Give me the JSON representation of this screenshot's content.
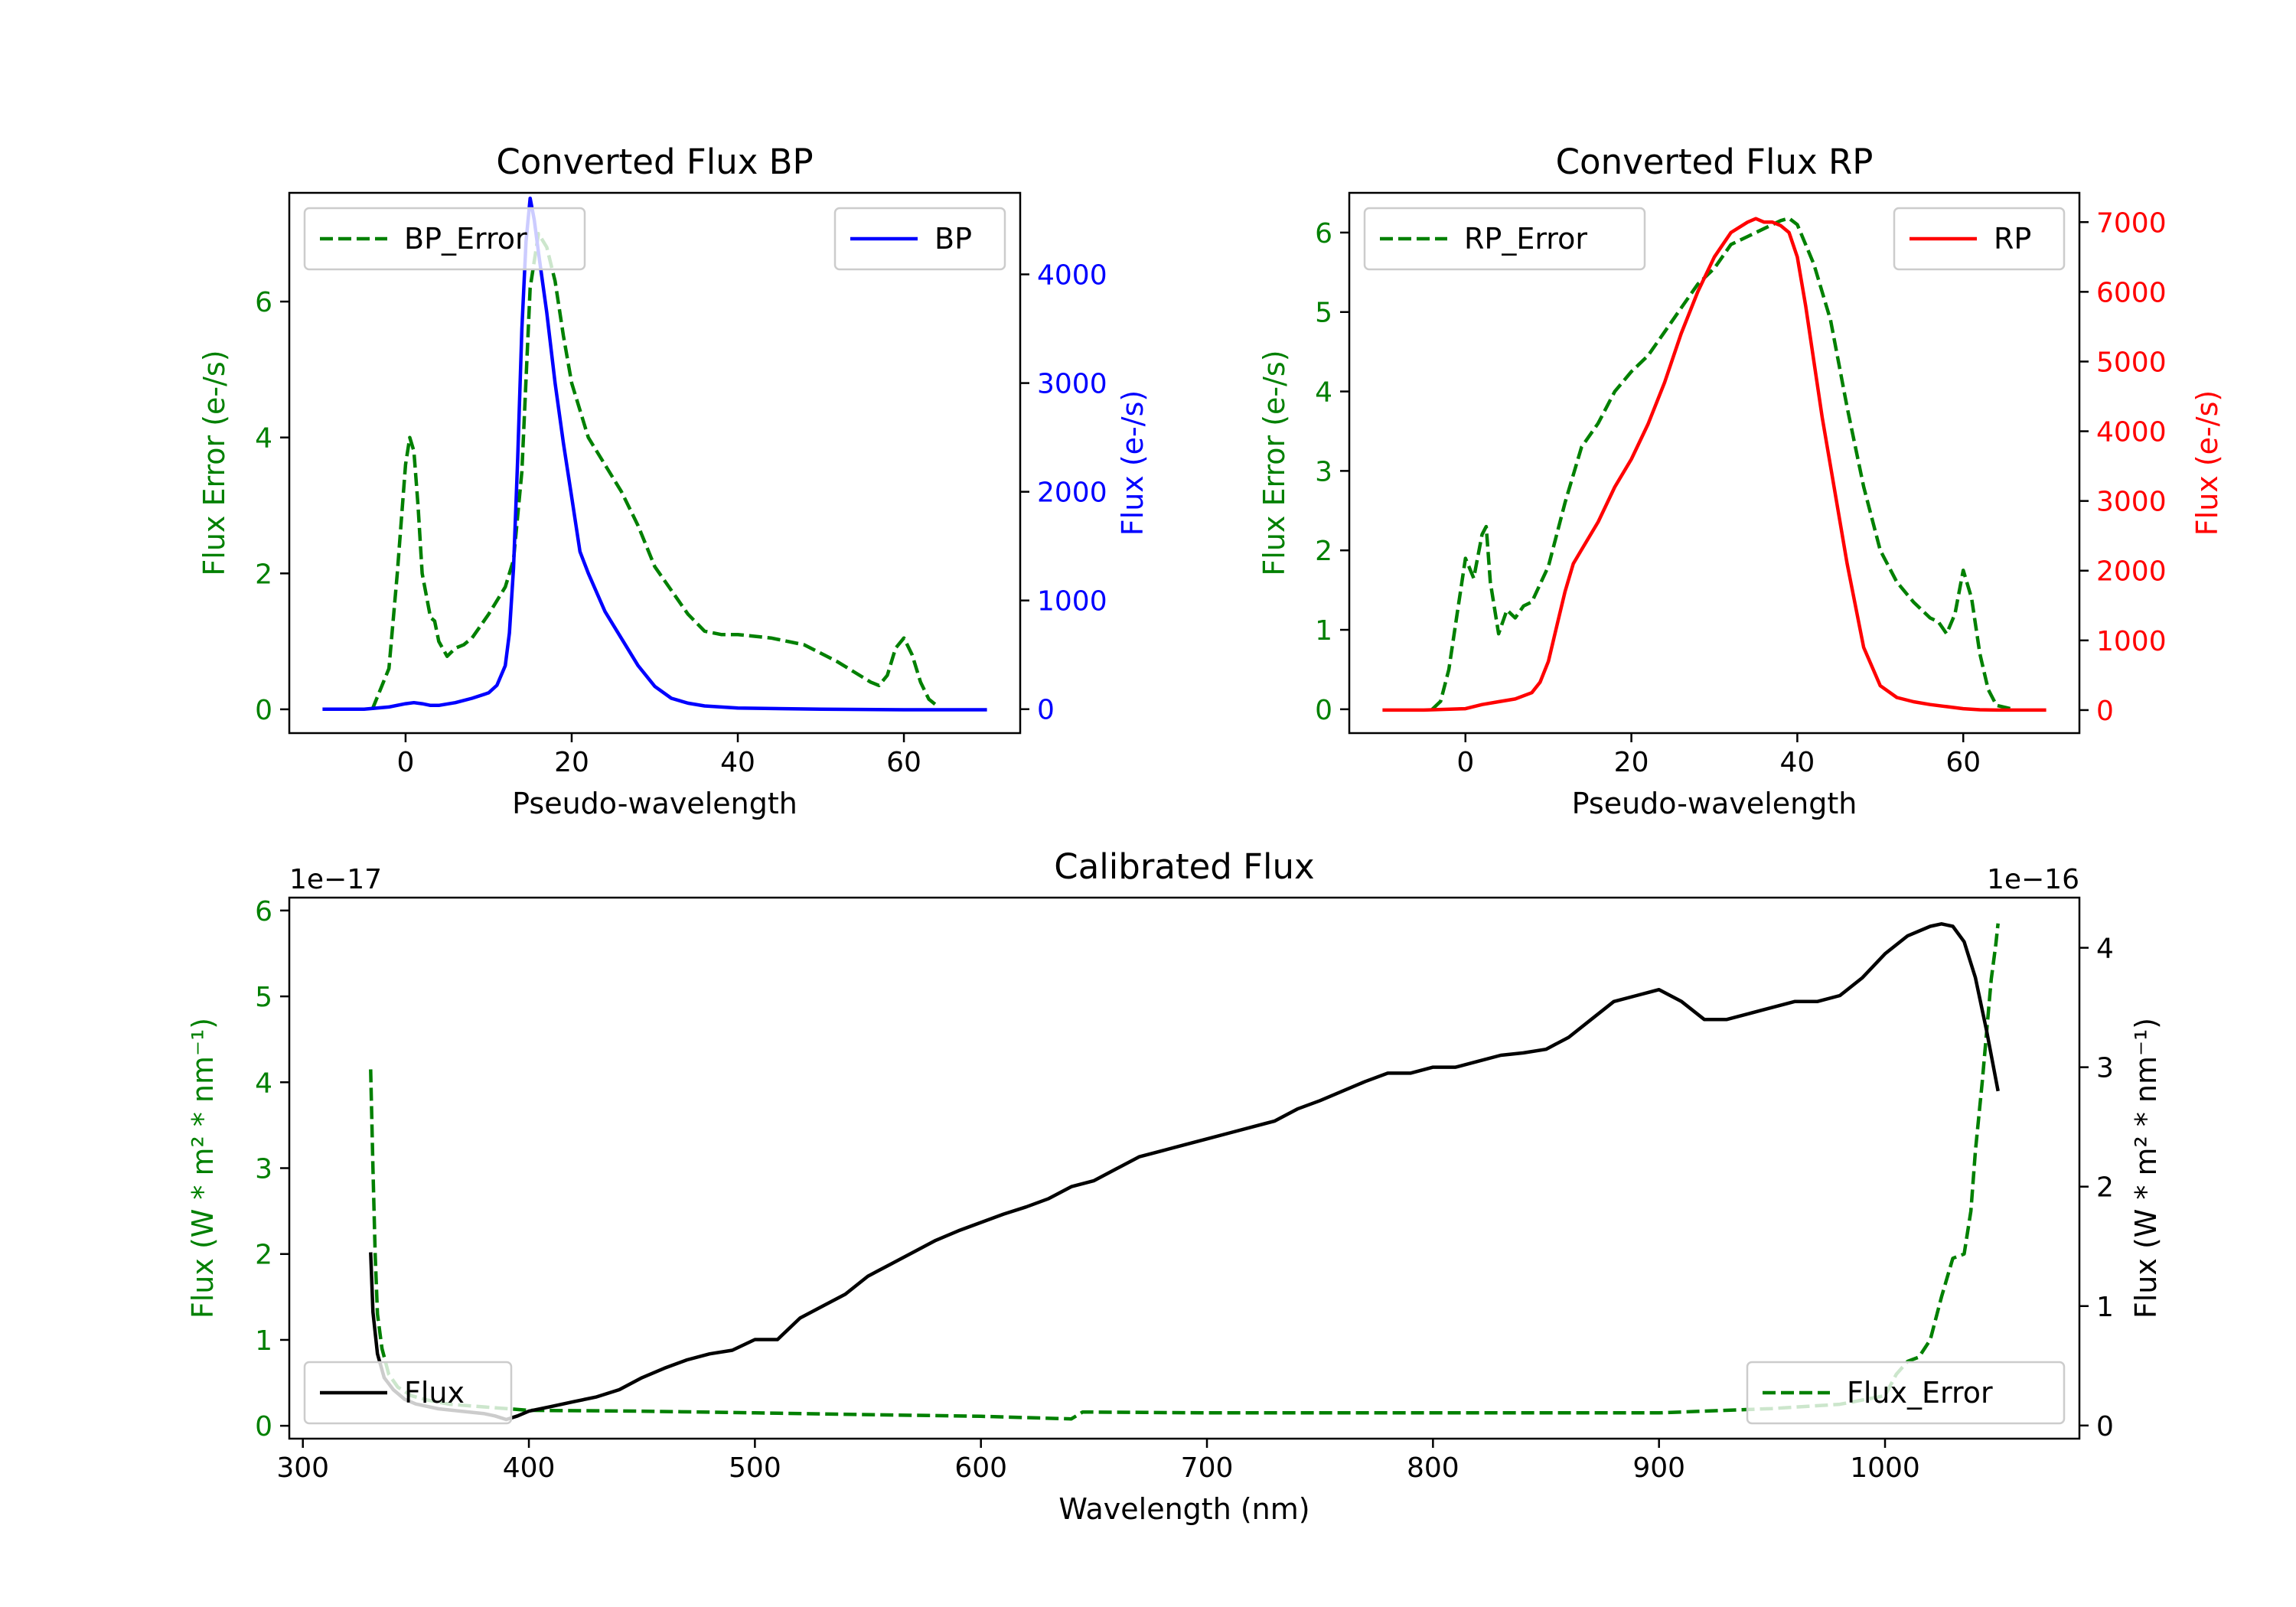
{
  "colors": {
    "bp": "#0000ff",
    "rp": "#ff0000",
    "error": "#008000",
    "flux": "#000000"
  },
  "chart_data": [
    {
      "type": "line",
      "title": "Converted Flux BP",
      "xlabel": "Pseudo-wavelength",
      "ylabel_left": "Flux Error (e-/s)",
      "ylabel_right": "Flux (e-/s)",
      "xlim": [
        -14,
        74
      ],
      "ylim_left": [
        -0.35,
        7.6
      ],
      "ylim_right": [
        -220,
        4750
      ],
      "xticks": [
        {
          "v": 0,
          "t": "0"
        },
        {
          "v": 20,
          "t": "20"
        },
        {
          "v": 40,
          "t": "40"
        },
        {
          "v": 60,
          "t": "60"
        }
      ],
      "yticks_left": [
        {
          "v": 0,
          "t": "0"
        },
        {
          "v": 2,
          "t": "2"
        },
        {
          "v": 4,
          "t": "4"
        },
        {
          "v": 6,
          "t": "6"
        }
      ],
      "yticks_right": [
        {
          "v": 0,
          "t": "0"
        },
        {
          "v": 1000,
          "t": "1000"
        },
        {
          "v": 2000,
          "t": "2000"
        },
        {
          "v": 3000,
          "t": "3000"
        },
        {
          "v": 4000,
          "t": "4000"
        }
      ],
      "series": [
        {
          "name": "BP_Error",
          "axis": "left",
          "style": "dashed",
          "x": [
            -4,
            -2,
            -1,
            0,
            0.5,
            1,
            1.5,
            2,
            3,
            3.5,
            4,
            5,
            6,
            7,
            8,
            10,
            12,
            13,
            14,
            15,
            16,
            17,
            18,
            19,
            20,
            22,
            24,
            26,
            28,
            30,
            32,
            34,
            36,
            38,
            40,
            44,
            48,
            52,
            56,
            57,
            58,
            59,
            60,
            61,
            62,
            63,
            64
          ],
          "y": [
            0,
            0.6,
            2.0,
            3.6,
            4.0,
            3.8,
            3.0,
            2.0,
            1.35,
            1.3,
            1.0,
            0.78,
            0.9,
            0.95,
            1.05,
            1.4,
            1.8,
            2.2,
            3.5,
            6.2,
            7.0,
            6.8,
            6.3,
            5.5,
            4.8,
            4.0,
            3.6,
            3.2,
            2.7,
            2.1,
            1.75,
            1.4,
            1.15,
            1.1,
            1.1,
            1.05,
            0.95,
            0.7,
            0.4,
            0.35,
            0.5,
            0.9,
            1.05,
            0.8,
            0.4,
            0.15,
            0.05
          ]
        },
        {
          "name": "BP",
          "axis": "right",
          "style": "solid",
          "x": [
            -10,
            -5,
            -2,
            0,
            1,
            2,
            3,
            4,
            6,
            8,
            10,
            11,
            12,
            12.5,
            13,
            13.5,
            14,
            14.5,
            15,
            15.5,
            16,
            17,
            18,
            19,
            20,
            21,
            22,
            24,
            26,
            28,
            30,
            32,
            34,
            36,
            40,
            50,
            60,
            70
          ],
          "y": [
            0,
            0,
            20,
            50,
            60,
            50,
            35,
            35,
            60,
            100,
            150,
            220,
            400,
            700,
            1300,
            2300,
            3500,
            4300,
            4700,
            4500,
            4200,
            3650,
            3000,
            2450,
            1950,
            1450,
            1250,
            900,
            650,
            400,
            210,
            100,
            55,
            30,
            10,
            0,
            -5,
            -5
          ]
        }
      ],
      "legend": {
        "left": "BP_Error",
        "right": "BP"
      }
    },
    {
      "type": "line",
      "title": "Converted Flux RP",
      "xlabel": "Pseudo-wavelength",
      "ylabel_left": "Flux Error (e-/s)",
      "ylabel_right": "Flux (e-/s)",
      "xlim": [
        -14,
        74
      ],
      "ylim_left": [
        -0.3,
        6.5
      ],
      "ylim_right": [
        -330,
        7420
      ],
      "xticks": [
        {
          "v": 0,
          "t": "0"
        },
        {
          "v": 20,
          "t": "20"
        },
        {
          "v": 40,
          "t": "40"
        },
        {
          "v": 60,
          "t": "60"
        }
      ],
      "yticks_left": [
        {
          "v": 0,
          "t": "0"
        },
        {
          "v": 1,
          "t": "1"
        },
        {
          "v": 2,
          "t": "2"
        },
        {
          "v": 3,
          "t": "3"
        },
        {
          "v": 4,
          "t": "4"
        },
        {
          "v": 5,
          "t": "5"
        },
        {
          "v": 6,
          "t": "6"
        }
      ],
      "yticks_right": [
        {
          "v": 0,
          "t": "0"
        },
        {
          "v": 1000,
          "t": "1000"
        },
        {
          "v": 2000,
          "t": "2000"
        },
        {
          "v": 3000,
          "t": "3000"
        },
        {
          "v": 4000,
          "t": "4000"
        },
        {
          "v": 5000,
          "t": "5000"
        },
        {
          "v": 6000,
          "t": "6000"
        },
        {
          "v": 7000,
          "t": "7000"
        }
      ],
      "series": [
        {
          "name": "RP_Error",
          "axis": "left",
          "style": "dashed",
          "x": [
            -4,
            -3,
            -2,
            -1,
            0,
            1,
            2,
            2.5,
            3,
            4,
            5,
            6,
            7,
            8,
            10,
            12,
            14,
            16,
            18,
            20,
            22,
            24,
            26,
            28,
            30,
            32,
            34,
            36,
            38,
            39,
            40,
            42,
            44,
            46,
            48,
            50,
            52,
            54,
            56,
            57,
            58,
            59,
            60,
            61,
            62,
            63,
            64,
            66
          ],
          "y": [
            0,
            0.1,
            0.5,
            1.2,
            1.9,
            1.65,
            2.2,
            2.3,
            1.6,
            0.95,
            1.25,
            1.15,
            1.3,
            1.35,
            1.8,
            2.6,
            3.3,
            3.6,
            4.0,
            4.25,
            4.45,
            4.75,
            5.05,
            5.35,
            5.55,
            5.85,
            5.95,
            6.05,
            6.15,
            6.18,
            6.1,
            5.6,
            4.9,
            3.8,
            2.8,
            2.0,
            1.6,
            1.35,
            1.15,
            1.1,
            0.95,
            1.2,
            1.75,
            1.4,
            0.7,
            0.25,
            0.05,
            0
          ]
        },
        {
          "name": "RP",
          "axis": "right",
          "style": "solid",
          "x": [
            -10,
            -5,
            0,
            2,
            4,
            6,
            8,
            9,
            10,
            11,
            12,
            13,
            14,
            16,
            18,
            20,
            22,
            24,
            26,
            28,
            30,
            32,
            34,
            35,
            36,
            37,
            38,
            39,
            40,
            41,
            42,
            43,
            44,
            46,
            48,
            50,
            52,
            54,
            56,
            58,
            60,
            62,
            64,
            70
          ],
          "y": [
            0,
            0,
            20,
            80,
            120,
            160,
            250,
            400,
            700,
            1200,
            1700,
            2100,
            2300,
            2700,
            3200,
            3600,
            4100,
            4700,
            5400,
            6000,
            6500,
            6850,
            7000,
            7050,
            7000,
            7000,
            6950,
            6850,
            6500,
            5800,
            5000,
            4200,
            3500,
            2100,
            900,
            350,
            180,
            120,
            80,
            50,
            20,
            5,
            0,
            0
          ]
        }
      ],
      "legend": {
        "left": "RP_Error",
        "right": "RP"
      }
    },
    {
      "type": "line",
      "title": "Calibrated Flux",
      "xlabel": "Wavelength (nm)",
      "ylabel_left": "Flux (W * m² * nm⁻¹)",
      "ylabel_right": "Flux (W * m² * nm⁻¹)",
      "offset_left": "1e−17",
      "offset_right": "1e−16",
      "xlim": [
        294,
        1086
      ],
      "ylim_left": [
        -0.15,
        6.15
      ],
      "ylim_right": [
        -0.11,
        4.42
      ],
      "xticks": [
        {
          "v": 300,
          "t": "300"
        },
        {
          "v": 400,
          "t": "400"
        },
        {
          "v": 500,
          "t": "500"
        },
        {
          "v": 600,
          "t": "600"
        },
        {
          "v": 700,
          "t": "700"
        },
        {
          "v": 800,
          "t": "800"
        },
        {
          "v": 900,
          "t": "900"
        },
        {
          "v": 1000,
          "t": "1000"
        }
      ],
      "yticks_left": [
        {
          "v": 0,
          "t": "0"
        },
        {
          "v": 1,
          "t": "1"
        },
        {
          "v": 2,
          "t": "2"
        },
        {
          "v": 3,
          "t": "3"
        },
        {
          "v": 4,
          "t": "4"
        },
        {
          "v": 5,
          "t": "5"
        },
        {
          "v": 6,
          "t": "6"
        }
      ],
      "yticks_right": [
        {
          "v": 0,
          "t": "0"
        },
        {
          "v": 1,
          "t": "1"
        },
        {
          "v": 2,
          "t": "2"
        },
        {
          "v": 3,
          "t": "3"
        },
        {
          "v": 4,
          "t": "4"
        }
      ],
      "series": [
        {
          "name": "Flux_Error",
          "axis": "left",
          "style": "dashed",
          "x": [
            330,
            331,
            332,
            333,
            335,
            338,
            342,
            348,
            355,
            365,
            380,
            400,
            450,
            500,
            550,
            600,
            640,
            645,
            700,
            800,
            900,
            950,
            980,
            1000,
            1005,
            1010,
            1015,
            1020,
            1025,
            1030,
            1035,
            1038,
            1040,
            1043,
            1045,
            1047,
            1049,
            1050
          ],
          "y": [
            4.15,
            3.0,
            2.0,
            1.3,
            0.9,
            0.6,
            0.45,
            0.35,
            0.3,
            0.25,
            0.22,
            0.18,
            0.17,
            0.15,
            0.13,
            0.11,
            0.08,
            0.16,
            0.15,
            0.15,
            0.15,
            0.2,
            0.25,
            0.35,
            0.6,
            0.75,
            0.8,
            1.0,
            1.5,
            1.95,
            2.0,
            2.5,
            3.2,
            4.0,
            4.6,
            5.2,
            5.6,
            5.85
          ]
        },
        {
          "name": "Flux",
          "axis": "right",
          "style": "solid",
          "x": [
            330,
            331,
            333,
            336,
            340,
            345,
            350,
            360,
            370,
            380,
            385,
            390,
            395,
            400,
            410,
            420,
            430,
            440,
            450,
            460,
            470,
            480,
            490,
            500,
            510,
            520,
            530,
            540,
            550,
            560,
            570,
            580,
            590,
            600,
            610,
            620,
            630,
            640,
            650,
            660,
            670,
            680,
            690,
            700,
            710,
            720,
            730,
            740,
            750,
            760,
            770,
            780,
            790,
            800,
            810,
            820,
            830,
            840,
            850,
            860,
            870,
            880,
            890,
            900,
            910,
            920,
            930,
            940,
            950,
            960,
            970,
            980,
            990,
            1000,
            1010,
            1020,
            1025,
            1030,
            1035,
            1040,
            1045,
            1050
          ],
          "y": [
            1.45,
            0.95,
            0.6,
            0.4,
            0.3,
            0.22,
            0.18,
            0.14,
            0.12,
            0.1,
            0.08,
            0.05,
            0.08,
            0.12,
            0.16,
            0.2,
            0.24,
            0.3,
            0.4,
            0.48,
            0.55,
            0.6,
            0.63,
            0.72,
            0.72,
            0.9,
            1.0,
            1.1,
            1.25,
            1.35,
            1.45,
            1.55,
            1.63,
            1.7,
            1.77,
            1.83,
            1.9,
            2.0,
            2.05,
            2.15,
            2.25,
            2.3,
            2.35,
            2.4,
            2.45,
            2.5,
            2.55,
            2.65,
            2.72,
            2.8,
            2.88,
            2.95,
            2.95,
            3.0,
            3.0,
            3.05,
            3.1,
            3.12,
            3.15,
            3.25,
            3.4,
            3.55,
            3.6,
            3.65,
            3.55,
            3.4,
            3.4,
            3.45,
            3.5,
            3.55,
            3.55,
            3.6,
            3.75,
            3.95,
            4.1,
            4.18,
            4.2,
            4.18,
            4.05,
            3.75,
            3.3,
            2.8
          ]
        }
      ],
      "legend": {
        "left": "Flux",
        "right": "Flux_Error"
      }
    }
  ]
}
